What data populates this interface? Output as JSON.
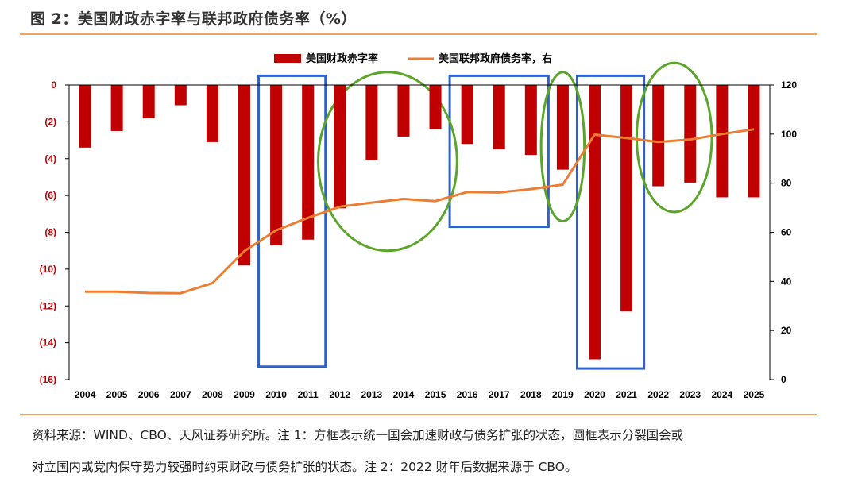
{
  "figure": {
    "title": "图 2：美国财政赤字率与联邦政府债务率（%）"
  },
  "source_note": {
    "line1": "资料来源：WIND、CBO、天风证券研究所。注 1：方框表示统一国会加速财政与债务扩张的状态，圆框表示分裂国会或",
    "line2": "对立国内或党内保守势力较强时约束财政与债务扩张的状态。注 2：2022 财年后数据来源于 CBO。"
  },
  "colors": {
    "deficit_bar": "#c00000",
    "debt_line": "#ed7d31",
    "box": "#2f62c7",
    "ellipse": "#5ba52b",
    "rule": "#f0a35e"
  },
  "chart_data": {
    "type": "bar+line",
    "categories": [
      "2004",
      "2005",
      "2006",
      "2007",
      "2008",
      "2009",
      "2010",
      "2011",
      "2012",
      "2013",
      "2014",
      "2015",
      "2016",
      "2017",
      "2018",
      "2019",
      "2020",
      "2021",
      "2022",
      "2023",
      "2024",
      "2025"
    ],
    "series": [
      {
        "name": "美国财政赤字率",
        "type": "bar",
        "axis": "left",
        "values": [
          -3.4,
          -2.5,
          -1.8,
          -1.1,
          -3.1,
          -9.8,
          -8.7,
          -8.4,
          -6.7,
          -4.1,
          -2.8,
          -2.4,
          -3.2,
          -3.5,
          -3.8,
          -4.6,
          -14.9,
          -12.3,
          -5.5,
          -5.3,
          -6.1,
          -6.1
        ]
      },
      {
        "name": "美国联邦政府债务率，右",
        "type": "line",
        "axis": "right",
        "values": [
          35.8,
          35.8,
          35.3,
          35.2,
          39.3,
          52.3,
          60.8,
          65.9,
          70.4,
          72.1,
          73.6,
          72.7,
          76.4,
          76.2,
          77.6,
          79.4,
          99.8,
          98.4,
          96.8,
          97.8,
          100.0,
          102.0
        ]
      }
    ],
    "left_axis": {
      "ylim": [
        -16,
        0
      ],
      "ticks": [
        0,
        -2,
        -4,
        -6,
        -8,
        -10,
        -12,
        -14,
        -16
      ],
      "tick_labels": [
        "0",
        "(2)",
        "(4)",
        "(6)",
        "(8)",
        "(10)",
        "(12)",
        "(14)",
        "(16)"
      ]
    },
    "right_axis": {
      "ylim": [
        0,
        120
      ],
      "ticks": [
        120,
        100,
        80,
        60,
        40,
        20,
        0
      ],
      "tick_labels": [
        "120",
        "100",
        "80",
        "60",
        "40",
        "20",
        "0"
      ]
    },
    "legend": {
      "position": "top-center"
    },
    "annotations": {
      "boxes": [
        {
          "label": "统一国会",
          "from": "2010",
          "to": "2011",
          "y_range": [
            -15.3,
            0.5
          ]
        },
        {
          "label": "统一国会",
          "from": "2016",
          "to": "2018",
          "y_range": [
            -7.7,
            0.5
          ]
        },
        {
          "label": "统一国会",
          "from": "2020",
          "to": "2021",
          "y_range": [
            -15.4,
            0.5
          ]
        }
      ],
      "ellipses": [
        {
          "label": "分裂国会",
          "from": "2012",
          "to": "2015",
          "y_range": [
            -9.0,
            0.7
          ]
        },
        {
          "label": "分裂国会",
          "from": "2019",
          "to": "2019",
          "y_range": [
            -7.4,
            0.7
          ]
        },
        {
          "label": "分裂国会",
          "from": "2022",
          "to": "2023",
          "y_range": [
            -6.9,
            1.2
          ]
        }
      ]
    }
  }
}
